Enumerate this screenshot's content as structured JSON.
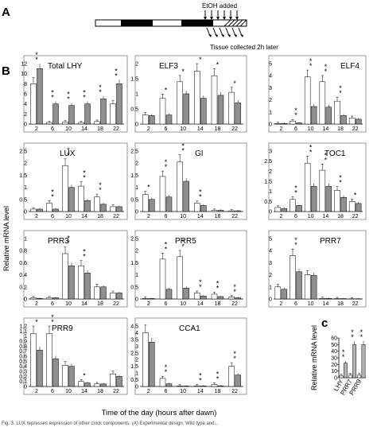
{
  "figure": {
    "panel_letters": {
      "a": "A",
      "b": "B",
      "c": "c"
    },
    "schematic": {
      "ethoh_label": "EtOH added",
      "tissue_label": "Tissue collected 2h later"
    },
    "shared_ylabel": "Relative mRNA level",
    "shared_xlabel": "Time of the day (hours after dawn)",
    "caption_fragment": "Fig. 3. LUX represses expression of other clock components. (A) Experimental design. Wild type and..."
  },
  "chart_data": [
    {
      "type": "bar",
      "title": "Total LHY",
      "categories": [
        "2",
        "6",
        "10",
        "14",
        "18",
        "22"
      ],
      "ylim": [
        0,
        12
      ],
      "yticks": [
        0,
        2,
        4,
        6,
        8,
        10,
        12
      ],
      "series": [
        {
          "values": [
            8,
            0.3,
            0.4,
            0.3,
            0.5,
            4
          ]
        },
        {
          "values": [
            11,
            4,
            3.7,
            4,
            5,
            8
          ]
        }
      ],
      "stars": [
        2,
        2,
        2,
        2,
        2,
        2
      ]
    },
    {
      "type": "bar",
      "title": "ELF3",
      "categories": [
        "2",
        "6",
        "10",
        "14",
        "18",
        "22"
      ],
      "ylim": [
        0,
        2
      ],
      "yticks": [
        0,
        0.5,
        1,
        1.5,
        2
      ],
      "series": [
        {
          "values": [
            0.3,
            0.85,
            1.4,
            1.75,
            1.6,
            1.05
          ]
        },
        {
          "values": [
            0.28,
            0.3,
            1.0,
            0.85,
            0.95,
            0.7
          ]
        }
      ],
      "stars": [
        0,
        1,
        1,
        1,
        1,
        1
      ]
    },
    {
      "type": "bar",
      "title": "ELF4",
      "categories": [
        "2",
        "6",
        "10",
        "14",
        "18",
        "22"
      ],
      "ylim": [
        0,
        5
      ],
      "yticks": [
        0,
        1,
        2,
        3,
        4,
        5
      ],
      "series": [
        {
          "values": [
            0.05,
            0.25,
            3.9,
            3.5,
            1.9,
            0.5
          ]
        },
        {
          "values": [
            0.05,
            0.1,
            1.45,
            1.4,
            0.7,
            0.4
          ]
        }
      ],
      "stars": [
        0,
        2,
        2,
        2,
        2,
        0
      ]
    },
    {
      "type": "bar",
      "title": "LUX",
      "categories": [
        "2",
        "6",
        "10",
        "14",
        "18",
        "22"
      ],
      "ylim": [
        0,
        2.5
      ],
      "yticks": [
        0,
        0.5,
        1,
        1.5,
        2,
        2.5
      ],
      "series": [
        {
          "values": [
            0.1,
            0.35,
            1.9,
            1.05,
            0.6,
            0.2
          ]
        },
        {
          "values": [
            0.1,
            0.1,
            1.0,
            0.45,
            0.3,
            0.2
          ]
        }
      ],
      "stars": [
        0,
        2,
        2,
        2,
        2,
        0
      ]
    },
    {
      "type": "bar",
      "title": "GI",
      "categories": [
        "2",
        "6",
        "10",
        "14",
        "18",
        "22"
      ],
      "ylim": [
        0,
        2.5
      ],
      "yticks": [
        0,
        0.5,
        1,
        1.5,
        2,
        2.5
      ],
      "series": [
        {
          "values": [
            0.7,
            1.45,
            2.05,
            0.35,
            0.05,
            0.03
          ]
        },
        {
          "values": [
            0.5,
            0.6,
            1.25,
            0.25,
            0.05,
            0.03
          ]
        }
      ],
      "stars": [
        1,
        2,
        2,
        2,
        0,
        0
      ]
    },
    {
      "type": "bar",
      "title": "TOC1",
      "categories": [
        "2",
        "6",
        "10",
        "14",
        "18",
        "22"
      ],
      "ylim": [
        0,
        3
      ],
      "yticks": [
        0,
        0.5,
        1,
        1.5,
        2,
        2.5,
        3
      ],
      "series": [
        {
          "values": [
            0.2,
            0.6,
            2.4,
            2.05,
            1.05,
            0.5
          ]
        },
        {
          "values": [
            0.15,
            0.3,
            1.25,
            1.25,
            0.7,
            0.4
          ]
        }
      ],
      "stars": [
        0,
        2,
        2,
        2,
        2,
        1
      ]
    },
    {
      "type": "bar",
      "title": "PRR3",
      "categories": [
        "2",
        "6",
        "10",
        "14",
        "18",
        "22"
      ],
      "ylim": [
        0,
        1
      ],
      "yticks": [
        0,
        0.2,
        0.4,
        0.6,
        0.8,
        1
      ],
      "series": [
        {
          "values": [
            0.02,
            0.02,
            0.75,
            0.55,
            0.2,
            0.1
          ]
        },
        {
          "values": [
            0.01,
            0.02,
            0.55,
            0.43,
            0.2,
            0.1
          ]
        }
      ],
      "stars": [
        0,
        0,
        2,
        2,
        0,
        0
      ]
    },
    {
      "type": "bar",
      "title": "PRR5",
      "categories": [
        "2",
        "6",
        "10",
        "14",
        "18",
        "22"
      ],
      "ylim": [
        0,
        2.5
      ],
      "yticks": [
        0,
        0.5,
        1,
        1.5,
        2,
        2.5
      ],
      "series": [
        {
          "values": [
            0.02,
            1.65,
            1.75,
            0.25,
            0.2,
            0.08
          ]
        },
        {
          "values": [
            0.02,
            0.4,
            0.45,
            0.12,
            0.1,
            0.05
          ]
        }
      ],
      "stars": [
        0,
        2,
        2,
        2,
        2,
        2
      ]
    },
    {
      "type": "bar",
      "title": "PRR7",
      "categories": [
        "2",
        "6",
        "10",
        "14",
        "18",
        "22"
      ],
      "ylim": [
        0,
        5
      ],
      "yticks": [
        0,
        1,
        2,
        3,
        4,
        5
      ],
      "series": [
        {
          "values": [
            1.0,
            3.6,
            2.0,
            0.05,
            0.03,
            0.02
          ]
        },
        {
          "values": [
            0.8,
            2.25,
            1.95,
            0.05,
            0.03,
            0.02
          ]
        }
      ],
      "stars": [
        0,
        2,
        0,
        0,
        0,
        0
      ]
    },
    {
      "type": "bar",
      "title": "PRR9",
      "categories": [
        "2",
        "6",
        "10",
        "14",
        "18",
        "22"
      ],
      "ylim": [
        0,
        1.2
      ],
      "yticks": [
        0,
        0.1,
        0.2,
        0.3,
        0.4,
        0.5,
        0.6,
        0.7,
        0.8,
        0.9,
        1,
        1.1,
        1.2
      ],
      "series": [
        {
          "values": [
            1.05,
            1.05,
            0.42,
            0.1,
            0.05,
            0.25
          ]
        },
        {
          "values": [
            0.72,
            0.55,
            0.4,
            0.07,
            0.05,
            0.2
          ]
        }
      ],
      "stars": [
        1,
        2,
        0,
        1,
        0,
        0
      ]
    },
    {
      "type": "bar",
      "title": "CCA1",
      "categories": [
        "2",
        "6",
        "10",
        "14",
        "18",
        "22"
      ],
      "ylim": [
        0,
        4.5
      ],
      "yticks": [
        0,
        0.5,
        1,
        1.5,
        2,
        2.5,
        3,
        3.5,
        4,
        4.5
      ],
      "series": [
        {
          "values": [
            4.0,
            0.6,
            0.04,
            0.05,
            0.15,
            1.5
          ]
        },
        {
          "values": [
            3.3,
            0.2,
            0.03,
            0.03,
            0.05,
            0.85
          ]
        }
      ],
      "stars": [
        0,
        2,
        0,
        2,
        2,
        2
      ]
    },
    {
      "type": "bar",
      "title": "",
      "categories": [
        "LHY",
        "PRR7",
        "PRR9"
      ],
      "ylim": [
        0,
        60
      ],
      "yticks": [
        0,
        10,
        20,
        30,
        40,
        50,
        60
      ],
      "ylabel": "Relative mRNA level",
      "series": [
        {
          "values": [
            3,
            4,
            4
          ]
        },
        {
          "values": [
            22,
            50,
            50
          ]
        }
      ],
      "stars": [
        2,
        2,
        2
      ]
    }
  ],
  "colors": {
    "white_bar": "#ffffff",
    "gray_bar": "#8f8f8f",
    "c_gray": "#b3b3b3",
    "frame": "#7f7f7f"
  }
}
